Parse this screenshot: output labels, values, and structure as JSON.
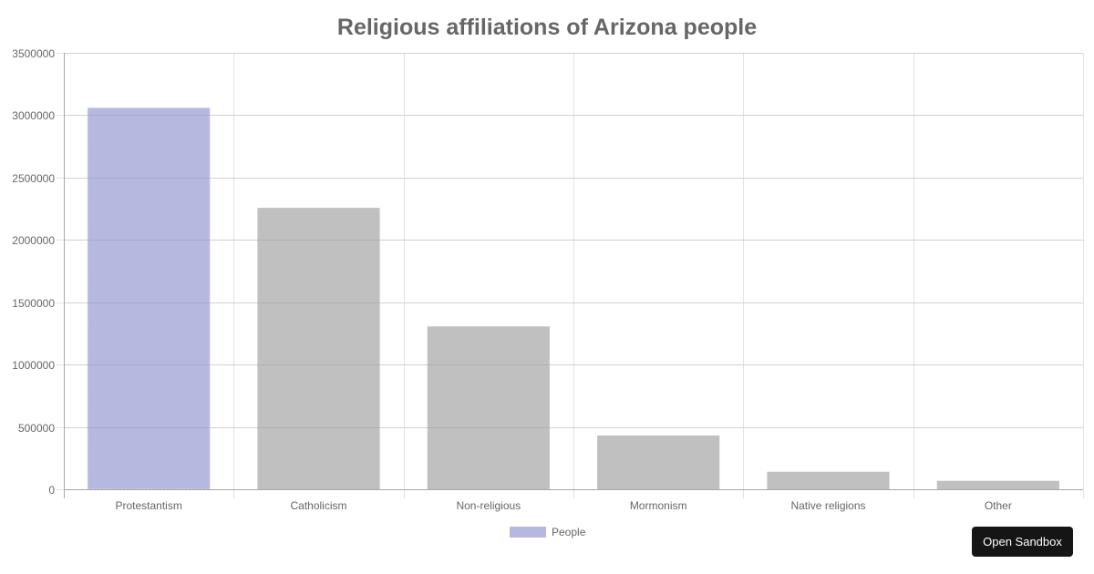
{
  "chart_data": {
    "type": "bar",
    "title": "Religious affiliations of Arizona people",
    "categories": [
      "Protestantism",
      "Catholicism",
      "Non-religious",
      "Mormonism",
      "Native religions",
      "Other"
    ],
    "series": [
      {
        "name": "People",
        "values": [
          3059000,
          2257000,
          1306000,
          431000,
          141000,
          68000
        ]
      }
    ],
    "bar_colors": [
      "#b6b8e0",
      "#c0c0c0",
      "#c0c0c0",
      "#c0c0c0",
      "#c0c0c0",
      "#c0c0c0"
    ],
    "xlabel": "",
    "ylabel": "",
    "ylim": [
      0,
      3500000
    ],
    "yticks": [
      "3500000",
      "3000000",
      "2500000",
      "2000000",
      "1500000",
      "1000000",
      "500000",
      "0"
    ],
    "grid": true,
    "legend_position": "bottom"
  },
  "legend": {
    "label": "People",
    "color": "#b6b8e0"
  },
  "button": {
    "label": "Open Sandbox"
  }
}
